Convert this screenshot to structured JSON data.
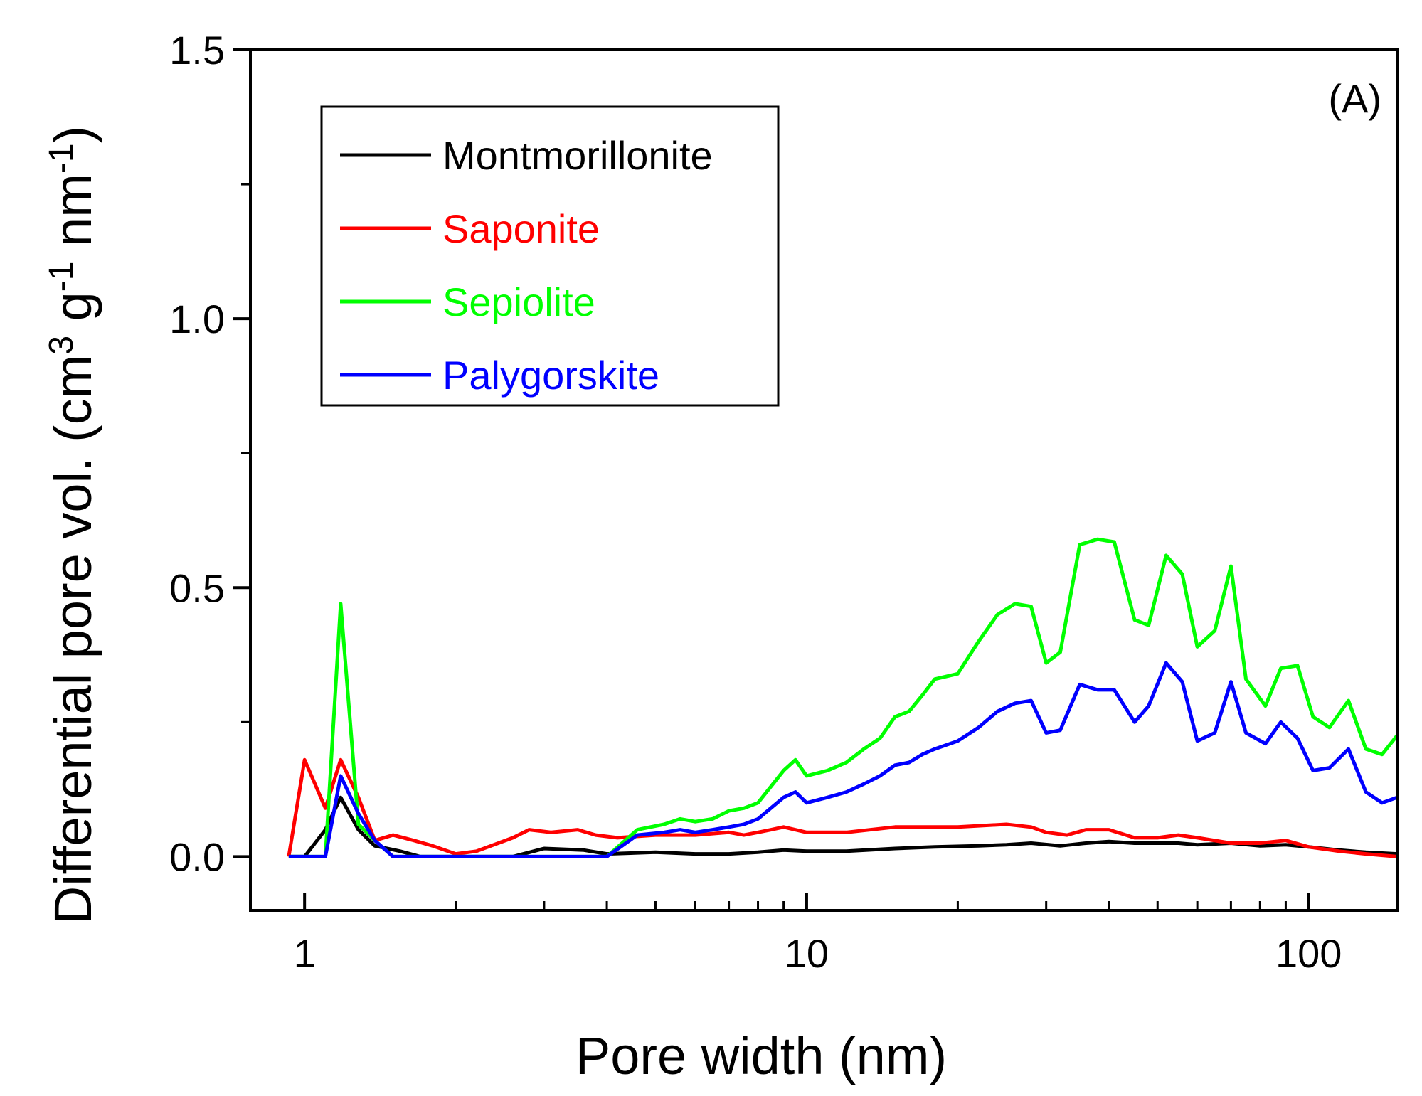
{
  "chart_data": {
    "type": "line",
    "title": "",
    "xlabel": "Pore width (nm)",
    "ylabel": {
      "main": "Differential pore vol. (cm",
      "sup1": "3",
      "mid": " g",
      "sup2": "-1",
      "mid2": " nm",
      "sup3": "-1",
      "end": ")"
    },
    "xscale": "log",
    "xlim": [
      0.78,
      150
    ],
    "ylim": [
      -0.1,
      1.5
    ],
    "xticks": [
      {
        "v": 1,
        "label": "1"
      },
      {
        "v": 10,
        "label": "10"
      },
      {
        "v": 100,
        "label": "100"
      }
    ],
    "yticks": [
      {
        "v": 0.0,
        "label": "0.0"
      },
      {
        "v": 0.5,
        "label": "0.5"
      },
      {
        "v": 1.0,
        "label": "1.0"
      },
      {
        "v": 1.5,
        "label": "1.5"
      }
    ],
    "annotation": "(A)",
    "legend_position": "top-left",
    "series": [
      {
        "name": "Montmorillonite",
        "color": "#000000",
        "points": [
          [
            0.93,
            0.0
          ],
          [
            1.0,
            0.0
          ],
          [
            1.1,
            0.05
          ],
          [
            1.18,
            0.11
          ],
          [
            1.28,
            0.05
          ],
          [
            1.38,
            0.02
          ],
          [
            1.55,
            0.01
          ],
          [
            1.7,
            0.0
          ],
          [
            2.0,
            0.0
          ],
          [
            2.6,
            0.0
          ],
          [
            3.0,
            0.015
          ],
          [
            3.6,
            0.012
          ],
          [
            4.0,
            0.005
          ],
          [
            5.0,
            0.008
          ],
          [
            6.0,
            0.005
          ],
          [
            7.0,
            0.005
          ],
          [
            8.0,
            0.008
          ],
          [
            9.0,
            0.012
          ],
          [
            10.0,
            0.01
          ],
          [
            12.0,
            0.01
          ],
          [
            15.0,
            0.015
          ],
          [
            18.0,
            0.018
          ],
          [
            22.0,
            0.02
          ],
          [
            25.0,
            0.022
          ],
          [
            28.0,
            0.025
          ],
          [
            32.0,
            0.02
          ],
          [
            36.0,
            0.025
          ],
          [
            40.0,
            0.028
          ],
          [
            45.0,
            0.025
          ],
          [
            50.0,
            0.025
          ],
          [
            55.0,
            0.025
          ],
          [
            60.0,
            0.022
          ],
          [
            70.0,
            0.025
          ],
          [
            80.0,
            0.02
          ],
          [
            90.0,
            0.022
          ],
          [
            100.0,
            0.018
          ],
          [
            115.0,
            0.012
          ],
          [
            130.0,
            0.008
          ],
          [
            150.0,
            0.005
          ]
        ]
      },
      {
        "name": "Saponite",
        "color": "#ff0000",
        "points": [
          [
            0.93,
            0.0
          ],
          [
            1.0,
            0.18
          ],
          [
            1.1,
            0.09
          ],
          [
            1.18,
            0.18
          ],
          [
            1.28,
            0.11
          ],
          [
            1.38,
            0.03
          ],
          [
            1.5,
            0.04
          ],
          [
            1.65,
            0.03
          ],
          [
            1.8,
            0.02
          ],
          [
            2.0,
            0.005
          ],
          [
            2.2,
            0.01
          ],
          [
            2.6,
            0.035
          ],
          [
            2.8,
            0.05
          ],
          [
            3.1,
            0.045
          ],
          [
            3.5,
            0.05
          ],
          [
            3.8,
            0.04
          ],
          [
            4.2,
            0.035
          ],
          [
            5.0,
            0.04
          ],
          [
            6.0,
            0.04
          ],
          [
            7.0,
            0.045
          ],
          [
            7.5,
            0.04
          ],
          [
            8.0,
            0.045
          ],
          [
            8.5,
            0.05
          ],
          [
            9.0,
            0.055
          ],
          [
            10.0,
            0.045
          ],
          [
            12.0,
            0.045
          ],
          [
            15.0,
            0.055
          ],
          [
            20.0,
            0.055
          ],
          [
            25.0,
            0.06
          ],
          [
            28.0,
            0.055
          ],
          [
            30.0,
            0.045
          ],
          [
            33.0,
            0.04
          ],
          [
            36.0,
            0.05
          ],
          [
            40.0,
            0.05
          ],
          [
            45.0,
            0.035
          ],
          [
            50.0,
            0.035
          ],
          [
            55.0,
            0.04
          ],
          [
            60.0,
            0.035
          ],
          [
            70.0,
            0.025
          ],
          [
            80.0,
            0.025
          ],
          [
            90.0,
            0.03
          ],
          [
            100.0,
            0.018
          ],
          [
            115.0,
            0.01
          ],
          [
            130.0,
            0.005
          ],
          [
            150.0,
            0.0
          ]
        ]
      },
      {
        "name": "Sepiolite",
        "color": "#00ff00",
        "points": [
          [
            0.93,
            0.0
          ],
          [
            1.1,
            0.0
          ],
          [
            1.18,
            0.47
          ],
          [
            1.28,
            0.06
          ],
          [
            1.38,
            0.03
          ],
          [
            1.5,
            0.0
          ],
          [
            2.0,
            0.0
          ],
          [
            2.6,
            0.0
          ],
          [
            3.0,
            0.0
          ],
          [
            3.5,
            0.0
          ],
          [
            4.0,
            0.0
          ],
          [
            4.6,
            0.05
          ],
          [
            5.2,
            0.06
          ],
          [
            5.6,
            0.07
          ],
          [
            6.0,
            0.065
          ],
          [
            6.5,
            0.07
          ],
          [
            7.0,
            0.085
          ],
          [
            7.5,
            0.09
          ],
          [
            8.0,
            0.1
          ],
          [
            9.0,
            0.16
          ],
          [
            9.5,
            0.18
          ],
          [
            10.0,
            0.15
          ],
          [
            11.0,
            0.16
          ],
          [
            12.0,
            0.175
          ],
          [
            13.0,
            0.2
          ],
          [
            14.0,
            0.22
          ],
          [
            15.0,
            0.26
          ],
          [
            16.0,
            0.27
          ],
          [
            17.0,
            0.3
          ],
          [
            18.0,
            0.33
          ],
          [
            20.0,
            0.34
          ],
          [
            22.0,
            0.4
          ],
          [
            24.0,
            0.45
          ],
          [
            26.0,
            0.47
          ],
          [
            28.0,
            0.465
          ],
          [
            30.0,
            0.36
          ],
          [
            32.0,
            0.38
          ],
          [
            35.0,
            0.58
          ],
          [
            38.0,
            0.59
          ],
          [
            41.0,
            0.585
          ],
          [
            45.0,
            0.44
          ],
          [
            48.0,
            0.43
          ],
          [
            52.0,
            0.56
          ],
          [
            56.0,
            0.525
          ],
          [
            60.0,
            0.39
          ],
          [
            65.0,
            0.42
          ],
          [
            70.0,
            0.54
          ],
          [
            75.0,
            0.33
          ],
          [
            82.0,
            0.28
          ],
          [
            88.0,
            0.35
          ],
          [
            95.0,
            0.355
          ],
          [
            102.0,
            0.26
          ],
          [
            110.0,
            0.24
          ],
          [
            120.0,
            0.29
          ],
          [
            130.0,
            0.2
          ],
          [
            140.0,
            0.19
          ],
          [
            150.0,
            0.225
          ]
        ]
      },
      {
        "name": "Palygorskite",
        "color": "#0000ff",
        "points": [
          [
            0.93,
            0.0
          ],
          [
            1.1,
            0.0
          ],
          [
            1.18,
            0.15
          ],
          [
            1.28,
            0.08
          ],
          [
            1.38,
            0.03
          ],
          [
            1.5,
            0.0
          ],
          [
            2.0,
            0.0
          ],
          [
            2.6,
            0.0
          ],
          [
            3.0,
            0.0
          ],
          [
            3.5,
            0.0
          ],
          [
            4.0,
            0.0
          ],
          [
            4.6,
            0.04
          ],
          [
            5.2,
            0.045
          ],
          [
            5.6,
            0.05
          ],
          [
            6.0,
            0.045
          ],
          [
            6.5,
            0.05
          ],
          [
            7.0,
            0.055
          ],
          [
            7.5,
            0.06
          ],
          [
            8.0,
            0.07
          ],
          [
            9.0,
            0.11
          ],
          [
            9.5,
            0.12
          ],
          [
            10.0,
            0.1
          ],
          [
            11.0,
            0.11
          ],
          [
            12.0,
            0.12
          ],
          [
            13.0,
            0.135
          ],
          [
            14.0,
            0.15
          ],
          [
            15.0,
            0.17
          ],
          [
            16.0,
            0.175
          ],
          [
            17.0,
            0.19
          ],
          [
            18.0,
            0.2
          ],
          [
            20.0,
            0.215
          ],
          [
            22.0,
            0.24
          ],
          [
            24.0,
            0.27
          ],
          [
            26.0,
            0.285
          ],
          [
            28.0,
            0.29
          ],
          [
            30.0,
            0.23
          ],
          [
            32.0,
            0.235
          ],
          [
            35.0,
            0.32
          ],
          [
            38.0,
            0.31
          ],
          [
            41.0,
            0.31
          ],
          [
            45.0,
            0.25
          ],
          [
            48.0,
            0.28
          ],
          [
            52.0,
            0.36
          ],
          [
            56.0,
            0.325
          ],
          [
            60.0,
            0.215
          ],
          [
            65.0,
            0.23
          ],
          [
            70.0,
            0.325
          ],
          [
            75.0,
            0.23
          ],
          [
            82.0,
            0.21
          ],
          [
            88.0,
            0.25
          ],
          [
            95.0,
            0.22
          ],
          [
            102.0,
            0.16
          ],
          [
            110.0,
            0.165
          ],
          [
            120.0,
            0.2
          ],
          [
            130.0,
            0.12
          ],
          [
            140.0,
            0.1
          ],
          [
            150.0,
            0.11
          ]
        ]
      }
    ]
  }
}
